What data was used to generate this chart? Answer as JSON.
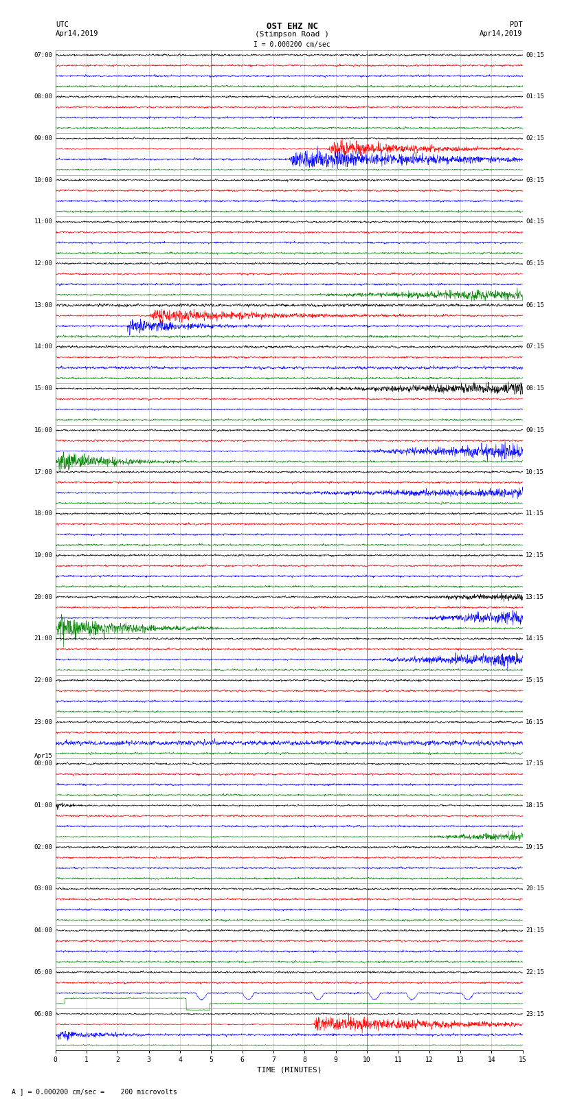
{
  "title_line1": "OST EHZ NC",
  "title_line2": "(Stimpson Road )",
  "title_line3": "I = 0.000200 cm/sec",
  "left_header_line1": "UTC",
  "left_header_line2": "Apr14,2019",
  "right_header_line1": "PDT",
  "right_header_line2": "Apr14,2019",
  "xlabel": "TIME (MINUTES)",
  "footer": "A ] = 0.000200 cm/sec =    200 microvolts",
  "bg_color": "#ffffff",
  "row_colors": [
    "black",
    "red",
    "blue",
    "green"
  ],
  "grid_color": "#aaaaaa",
  "utc_hour_labels": [
    "07:00",
    "08:00",
    "09:00",
    "10:00",
    "11:00",
    "12:00",
    "13:00",
    "14:00",
    "15:00",
    "16:00",
    "17:00",
    "18:00",
    "19:00",
    "20:00",
    "21:00",
    "22:00",
    "23:00",
    "Apr15\n00:00",
    "01:00",
    "02:00",
    "03:00",
    "04:00",
    "05:00",
    "06:00"
  ],
  "pdt_hour_labels": [
    "00:15",
    "01:15",
    "02:15",
    "03:15",
    "04:15",
    "05:15",
    "06:15",
    "07:15",
    "08:15",
    "09:15",
    "10:15",
    "11:15",
    "12:15",
    "13:15",
    "14:15",
    "15:15",
    "16:15",
    "17:15",
    "18:15",
    "19:15",
    "20:15",
    "21:15",
    "22:15",
    "23:15"
  ],
  "n_hours": 24,
  "minutes": 15,
  "seed": 42
}
